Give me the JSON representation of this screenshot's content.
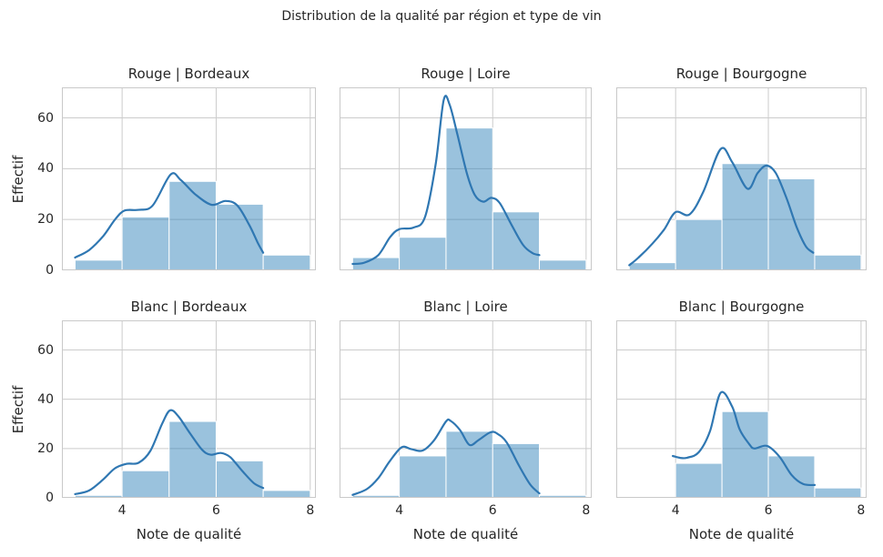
{
  "chart_data": {
    "type": "bar",
    "subtype": "faceted-histogram-with-kde",
    "suptitle": "Distribution de la qualité par région et type de vin",
    "xlabel": "Note de qualité",
    "ylabel": "Effectif",
    "xticks": [
      4,
      6,
      8
    ],
    "yticks": [
      0,
      20,
      40,
      60
    ],
    "xlim": [
      2.72,
      8.12
    ],
    "ylim": [
      0,
      72
    ],
    "bin_edges": [
      3,
      4,
      5,
      6,
      7,
      8
    ],
    "grid": true,
    "colors": {
      "bar_fill": "#1f77b4",
      "bar_fill_opacity": 0.45,
      "bar_edge": "#ffffff",
      "kde_line": "#2f77b2",
      "grid": "#cccccc",
      "spine": "#c9c9c9",
      "text": "#262626",
      "background": "#ffffff"
    },
    "facets": [
      {
        "wine_type": "Rouge",
        "region": "Bordeaux",
        "title": "Rouge | Bordeaux",
        "counts": [
          4,
          21,
          35,
          26,
          6
        ],
        "kde": [
          [
            3.0,
            5
          ],
          [
            3.3,
            8
          ],
          [
            3.6,
            13.5
          ],
          [
            3.85,
            20
          ],
          [
            4.05,
            23.5
          ],
          [
            4.35,
            23.8
          ],
          [
            4.65,
            25.5
          ],
          [
            5.03,
            37.7
          ],
          [
            5.25,
            35.5
          ],
          [
            5.55,
            30
          ],
          [
            5.9,
            25.8
          ],
          [
            6.2,
            27.3
          ],
          [
            6.45,
            25.5
          ],
          [
            6.7,
            18
          ],
          [
            6.88,
            11
          ],
          [
            7.0,
            6.9
          ]
        ]
      },
      {
        "wine_type": "Rouge",
        "region": "Loire",
        "title": "Rouge | Loire",
        "counts": [
          5,
          13,
          56,
          23,
          4
        ],
        "kde": [
          [
            3.0,
            2.5
          ],
          [
            3.25,
            3
          ],
          [
            3.55,
            6
          ],
          [
            3.8,
            13
          ],
          [
            4.0,
            16.2
          ],
          [
            4.3,
            16.8
          ],
          [
            4.55,
            21
          ],
          [
            4.78,
            42
          ],
          [
            4.95,
            67
          ],
          [
            5.08,
            65
          ],
          [
            5.25,
            53
          ],
          [
            5.45,
            38
          ],
          [
            5.62,
            29.5
          ],
          [
            5.8,
            27
          ],
          [
            5.97,
            28.5
          ],
          [
            6.15,
            26.5
          ],
          [
            6.4,
            18
          ],
          [
            6.65,
            10
          ],
          [
            6.85,
            6.8
          ],
          [
            7.0,
            6
          ]
        ]
      },
      {
        "wine_type": "Rouge",
        "region": "Bourgogne",
        "title": "Rouge | Bourgogne",
        "counts": [
          3,
          20,
          42,
          36,
          6
        ],
        "kde": [
          [
            3.0,
            2
          ],
          [
            3.2,
            5
          ],
          [
            3.5,
            10.5
          ],
          [
            3.75,
            16
          ],
          [
            4.0,
            22.9
          ],
          [
            4.3,
            22
          ],
          [
            4.6,
            31
          ],
          [
            4.97,
            47.7
          ],
          [
            5.22,
            42.6
          ],
          [
            5.55,
            32.1
          ],
          [
            5.77,
            38.3
          ],
          [
            5.96,
            41.2
          ],
          [
            6.16,
            38.3
          ],
          [
            6.39,
            28.5
          ],
          [
            6.62,
            16.6
          ],
          [
            6.81,
            9.4
          ],
          [
            6.97,
            6.9
          ]
        ]
      },
      {
        "wine_type": "Blanc",
        "region": "Bordeaux",
        "title": "Blanc | Bordeaux",
        "counts": [
          1,
          11,
          31,
          15,
          3
        ],
        "kde": [
          [
            3.0,
            1.5
          ],
          [
            3.3,
            3
          ],
          [
            3.6,
            7.5
          ],
          [
            3.85,
            12
          ],
          [
            4.1,
            13.8
          ],
          [
            4.35,
            14.2
          ],
          [
            4.6,
            19
          ],
          [
            4.85,
            30
          ],
          [
            5.02,
            35.5
          ],
          [
            5.2,
            33
          ],
          [
            5.45,
            26
          ],
          [
            5.7,
            19.5
          ],
          [
            5.88,
            17.5
          ],
          [
            6.1,
            18.2
          ],
          [
            6.3,
            16.5
          ],
          [
            6.55,
            11
          ],
          [
            6.8,
            6
          ],
          [
            7.0,
            4
          ]
        ]
      },
      {
        "wine_type": "Blanc",
        "region": "Loire",
        "title": "Blanc | Loire",
        "counts": [
          1,
          17,
          27,
          22,
          1
        ],
        "kde": [
          [
            3.0,
            1.2
          ],
          [
            3.3,
            3.5
          ],
          [
            3.55,
            8
          ],
          [
            3.8,
            15
          ],
          [
            4.05,
            20.5
          ],
          [
            4.25,
            19.8
          ],
          [
            4.5,
            19.2
          ],
          [
            4.75,
            23.5
          ],
          [
            5.0,
            31
          ],
          [
            5.1,
            31.2
          ],
          [
            5.3,
            27.5
          ],
          [
            5.5,
            21.5
          ],
          [
            5.7,
            23.5
          ],
          [
            5.95,
            26.6
          ],
          [
            6.1,
            26
          ],
          [
            6.3,
            22.5
          ],
          [
            6.55,
            13.5
          ],
          [
            6.8,
            5.5
          ],
          [
            7.0,
            1.8
          ]
        ]
      },
      {
        "wine_type": "Blanc",
        "region": "Bourgogne",
        "title": "Blanc | Bourgogne",
        "counts": [
          0,
          14,
          35,
          17,
          4
        ],
        "kde": [
          [
            3.94,
            17
          ],
          [
            4.1,
            16.2
          ],
          [
            4.25,
            16.3
          ],
          [
            4.5,
            18.5
          ],
          [
            4.74,
            27
          ],
          [
            4.97,
            42.6
          ],
          [
            5.22,
            37
          ],
          [
            5.38,
            27.8
          ],
          [
            5.58,
            22
          ],
          [
            5.7,
            20
          ],
          [
            5.97,
            21.1
          ],
          [
            6.24,
            16.7
          ],
          [
            6.5,
            9.3
          ],
          [
            6.75,
            5.6
          ],
          [
            7.0,
            5.2
          ]
        ]
      }
    ]
  }
}
